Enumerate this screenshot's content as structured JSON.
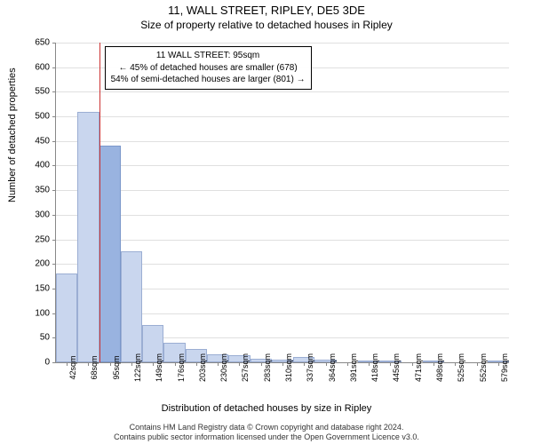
{
  "title": "11, WALL STREET, RIPLEY, DE5 3DE",
  "subtitle": "Size of property relative to detached houses in Ripley",
  "chart": {
    "type": "bar",
    "xlabel": "Distribution of detached houses by size in Ripley",
    "ylabel": "Number of detached properties",
    "ylim": [
      0,
      650
    ],
    "ytick_step": 50,
    "plot_bg": "#ffffff",
    "grid_color": "#e0e0e0",
    "axis_color": "#888888",
    "bar_fill": "#c9d6ee",
    "bar_border": "rgba(70,100,160,0.35)",
    "highlight_fill": "#99b3e0",
    "bar_width_ratio": 1.0,
    "x_labels": [
      "42sqm",
      "68sqm",
      "95sqm",
      "122sqm",
      "149sqm",
      "176sqm",
      "203sqm",
      "230sqm",
      "257sqm",
      "283sqm",
      "310sqm",
      "337sqm",
      "364sqm",
      "391sqm",
      "418sqm",
      "445sqm",
      "471sqm",
      "498sqm",
      "525sqm",
      "552sqm",
      "579sqm"
    ],
    "values": [
      180,
      510,
      440,
      225,
      75,
      40,
      28,
      16,
      15,
      8,
      6,
      10,
      5,
      0,
      4,
      2,
      0,
      1,
      0,
      0,
      1
    ],
    "highlight_index": 2
  },
  "reference_line": {
    "color": "#cc3333",
    "x_index": 2,
    "align": "left"
  },
  "annotation": {
    "line1": "11 WALL STREET: 95sqm",
    "line2": "← 45% of detached houses are smaller (678)",
    "line3": "54% of semi-detached houses are larger (801) →",
    "border_color": "#000000",
    "bg": "rgba(255,255,255,0.95)",
    "fontsize": 10
  },
  "footer": {
    "line1": "Contains HM Land Registry data © Crown copyright and database right 2024.",
    "line2": "Contains public sector information licensed under the Open Government Licence v3.0."
  }
}
